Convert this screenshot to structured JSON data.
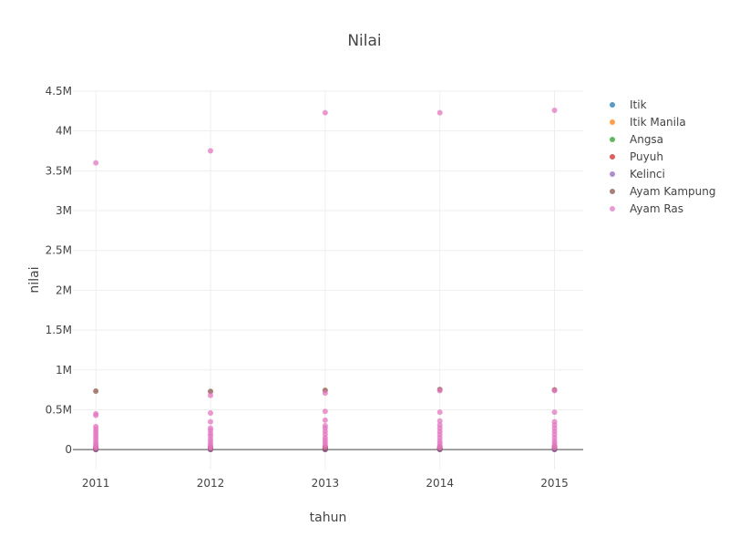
{
  "chart_data": {
    "type": "scatter",
    "title": "Nilai",
    "xlabel": "tahun",
    "ylabel": "nilai",
    "x_ticks": [
      "2011",
      "2012",
      "2013",
      "2014",
      "2015"
    ],
    "y_ticks": [
      {
        "value": 0,
        "label": "0"
      },
      {
        "value": 500000,
        "label": "0.5M"
      },
      {
        "value": 1000000,
        "label": "1M"
      },
      {
        "value": 1500000,
        "label": "1.5M"
      },
      {
        "value": 2000000,
        "label": "2M"
      },
      {
        "value": 2500000,
        "label": "2.5M"
      },
      {
        "value": 3000000,
        "label": "3M"
      },
      {
        "value": 3500000,
        "label": "3.5M"
      },
      {
        "value": 4000000,
        "label": "4M"
      },
      {
        "value": 4500000,
        "label": "4.5M"
      }
    ],
    "xlim": [
      2010.8,
      2015.25
    ],
    "ylim": [
      -250000,
      4500000
    ],
    "grid": true,
    "legend_position": "right",
    "series": [
      {
        "name": "Itik",
        "color": "#1f77b4",
        "points": [
          [
            2011,
            5000
          ],
          [
            2011,
            12000
          ],
          [
            2012,
            6000
          ],
          [
            2012,
            14000
          ],
          [
            2013,
            8000
          ],
          [
            2013,
            16000
          ],
          [
            2014,
            7000
          ],
          [
            2014,
            15000
          ],
          [
            2015,
            9000
          ],
          [
            2015,
            17000
          ]
        ]
      },
      {
        "name": "Itik Manila",
        "color": "#ff7f0e",
        "points": [
          [
            2011,
            2000
          ],
          [
            2011,
            6000
          ],
          [
            2012,
            3000
          ],
          [
            2012,
            7000
          ],
          [
            2013,
            2500
          ],
          [
            2013,
            8000
          ],
          [
            2014,
            3000
          ],
          [
            2014,
            6500
          ],
          [
            2015,
            3500
          ],
          [
            2015,
            7500
          ]
        ]
      },
      {
        "name": "Angsa",
        "color": "#2ca02c",
        "points": [
          [
            2011,
            1000
          ],
          [
            2011,
            3000
          ],
          [
            2012,
            1500
          ],
          [
            2012,
            3500
          ],
          [
            2013,
            1200
          ],
          [
            2013,
            4000
          ],
          [
            2014,
            1300
          ],
          [
            2014,
            3800
          ],
          [
            2015,
            1400
          ],
          [
            2015,
            4200
          ]
        ]
      },
      {
        "name": "Puyuh",
        "color": "#d62728",
        "points": [
          [
            2011,
            4000
          ],
          [
            2011,
            20000
          ],
          [
            2012,
            5000
          ],
          [
            2012,
            22000
          ],
          [
            2013,
            6000
          ],
          [
            2013,
            25000
          ],
          [
            2014,
            5500
          ],
          [
            2014,
            24000
          ],
          [
            2015,
            6500
          ],
          [
            2015,
            26000
          ]
        ]
      },
      {
        "name": "Kelinci",
        "color": "#9467bd",
        "points": [
          [
            2011,
            800
          ],
          [
            2011,
            2500
          ],
          [
            2012,
            900
          ],
          [
            2012,
            2700
          ],
          [
            2013,
            1000
          ],
          [
            2013,
            3000
          ],
          [
            2014,
            1100
          ],
          [
            2014,
            3100
          ],
          [
            2015,
            1200
          ],
          [
            2015,
            3300
          ]
        ]
      },
      {
        "name": "Ayam Kampung",
        "color": "#8c564b",
        "points": [
          [
            2011,
            735000
          ],
          [
            2011,
            30000
          ],
          [
            2011,
            10000
          ],
          [
            2012,
            730000
          ],
          [
            2012,
            32000
          ],
          [
            2012,
            12000
          ],
          [
            2013,
            745000
          ],
          [
            2013,
            35000
          ],
          [
            2013,
            11000
          ],
          [
            2014,
            755000
          ],
          [
            2014,
            36000
          ],
          [
            2014,
            13000
          ],
          [
            2015,
            750000
          ],
          [
            2015,
            38000
          ],
          [
            2015,
            14000
          ]
        ]
      },
      {
        "name": "Ayam Ras",
        "color": "#e377c2",
        "points": [
          [
            2011,
            3600000
          ],
          [
            2011,
            450000
          ],
          [
            2011,
            430000
          ],
          [
            2011,
            290000
          ],
          [
            2011,
            260000
          ],
          [
            2011,
            230000
          ],
          [
            2011,
            200000
          ],
          [
            2011,
            170000
          ],
          [
            2011,
            140000
          ],
          [
            2011,
            110000
          ],
          [
            2011,
            80000
          ],
          [
            2011,
            60000
          ],
          [
            2011,
            40000
          ],
          [
            2011,
            20000
          ],
          [
            2012,
            3750000
          ],
          [
            2012,
            680000
          ],
          [
            2012,
            460000
          ],
          [
            2012,
            350000
          ],
          [
            2012,
            270000
          ],
          [
            2012,
            240000
          ],
          [
            2012,
            200000
          ],
          [
            2012,
            170000
          ],
          [
            2012,
            130000
          ],
          [
            2012,
            100000
          ],
          [
            2012,
            70000
          ],
          [
            2012,
            45000
          ],
          [
            2012,
            20000
          ],
          [
            2013,
            4230000
          ],
          [
            2013,
            710000
          ],
          [
            2013,
            480000
          ],
          [
            2013,
            370000
          ],
          [
            2013,
            300000
          ],
          [
            2013,
            270000
          ],
          [
            2013,
            230000
          ],
          [
            2013,
            190000
          ],
          [
            2013,
            150000
          ],
          [
            2013,
            120000
          ],
          [
            2013,
            90000
          ],
          [
            2013,
            60000
          ],
          [
            2013,
            35000
          ],
          [
            2014,
            4230000
          ],
          [
            2014,
            740000
          ],
          [
            2014,
            470000
          ],
          [
            2014,
            360000
          ],
          [
            2014,
            310000
          ],
          [
            2014,
            270000
          ],
          [
            2014,
            230000
          ],
          [
            2014,
            190000
          ],
          [
            2014,
            150000
          ],
          [
            2014,
            110000
          ],
          [
            2014,
            80000
          ],
          [
            2014,
            50000
          ],
          [
            2014,
            25000
          ],
          [
            2015,
            4260000
          ],
          [
            2015,
            740000
          ],
          [
            2015,
            470000
          ],
          [
            2015,
            350000
          ],
          [
            2015,
            310000
          ],
          [
            2015,
            270000
          ],
          [
            2015,
            230000
          ],
          [
            2015,
            190000
          ],
          [
            2015,
            150000
          ],
          [
            2015,
            110000
          ],
          [
            2015,
            80000
          ],
          [
            2015,
            50000
          ],
          [
            2015,
            25000
          ]
        ]
      }
    ]
  }
}
